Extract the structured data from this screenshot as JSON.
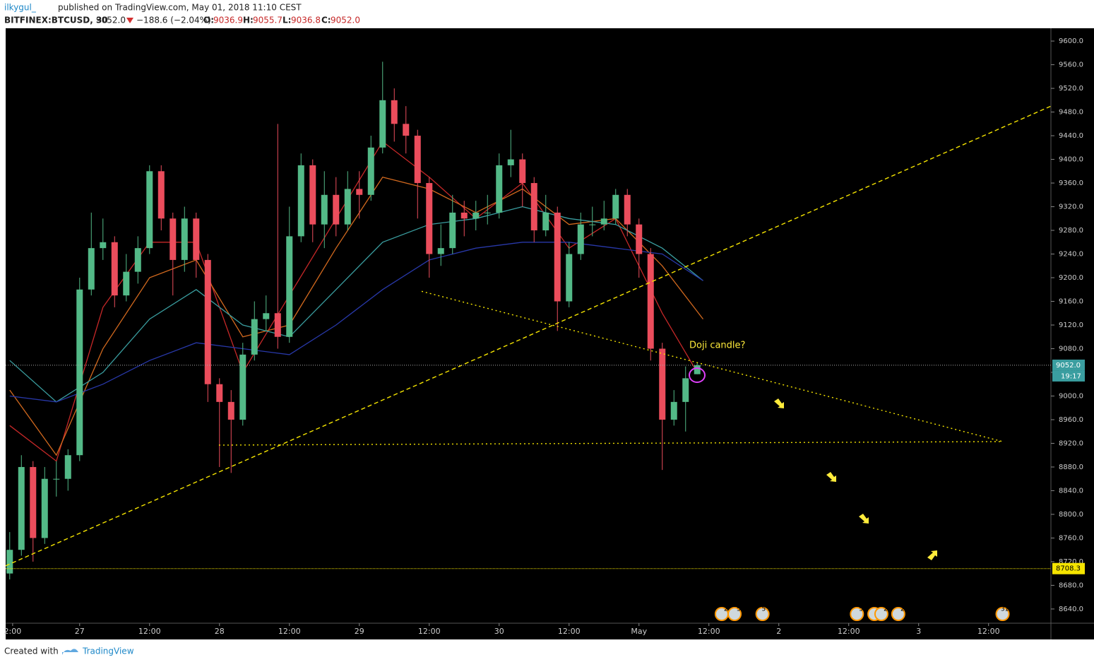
{
  "header": {
    "user": "ilkygul_",
    "published": "published on TradingView.com, May 01, 2018 11:10 CEST",
    "symbol": "BITFINEX:BTCUSD, 30",
    "last": "9052.0",
    "change": "−188.6 (−2.04%)",
    "o_label": "O:",
    "o": "9036.9",
    "h_label": "H:",
    "h": "9055.7",
    "l_label": "L:",
    "l": "9036.8",
    "c_label": "C:",
    "c": "9052.0"
  },
  "footer": {
    "created": "Created with",
    "brand": "TradingView"
  },
  "chart_data": {
    "type": "candlestick",
    "x": [
      -12,
      -10,
      -8,
      -6,
      -4,
      -2,
      0,
      2,
      4,
      6,
      8,
      10,
      12,
      14,
      16,
      18,
      20,
      22,
      24,
      26,
      28,
      30,
      32,
      34,
      36,
      38,
      40,
      42,
      44,
      46,
      48,
      50,
      52,
      54,
      56,
      58,
      60,
      62,
      64,
      66,
      68,
      70,
      72,
      74,
      76,
      78,
      80,
      82,
      84,
      86,
      88,
      90,
      92,
      94,
      96,
      98,
      100,
      102,
      104,
      106
    ],
    "open": [
      8700,
      8740,
      8880,
      8760,
      8860,
      8860,
      8900,
      9180,
      9250,
      9260,
      9170,
      9210,
      9250,
      9380,
      9300,
      9230,
      9300,
      9230,
      9020,
      8990,
      8960,
      9070,
      9130,
      9140,
      9100,
      9270,
      9390,
      9290,
      9340,
      9290,
      9350,
      9340,
      9420,
      9500,
      9460,
      9440,
      9360,
      9240,
      9250,
      9310,
      9300,
      9310,
      9310,
      9390,
      9400,
      9360,
      9280,
      9310,
      9160,
      9240,
      9290,
      9290,
      9300,
      9340,
      9290,
      9240,
      9080,
      8960,
      8990,
      9036.9
    ],
    "high": [
      8770,
      8900,
      8890,
      8880,
      8890,
      8910,
      9200,
      9310,
      9300,
      9270,
      9240,
      9270,
      9390,
      9390,
      9310,
      9320,
      9310,
      9240,
      9030,
      9010,
      9090,
      9160,
      9170,
      9460,
      9320,
      9410,
      9400,
      9380,
      9370,
      9380,
      9380,
      9440,
      9565,
      9520,
      9490,
      9450,
      9370,
      9290,
      9340,
      9330,
      9330,
      9340,
      9410,
      9450,
      9410,
      9370,
      9340,
      9320,
      9260,
      9310,
      9320,
      9330,
      9350,
      9350,
      9300,
      9250,
      9090,
      9010,
      9050,
      9055.7
    ],
    "low": [
      8690,
      8730,
      8720,
      8750,
      8830,
      8840,
      8890,
      9170,
      9230,
      9150,
      9160,
      9190,
      9240,
      9280,
      9170,
      9210,
      9200,
      8990,
      8880,
      8870,
      8950,
      9060,
      9110,
      9080,
      9090,
      9260,
      9260,
      9250,
      9270,
      9280,
      9300,
      9330,
      9410,
      9430,
      9410,
      9300,
      9200,
      9220,
      9240,
      9270,
      9280,
      9290,
      9300,
      9370,
      9320,
      9260,
      9270,
      9110,
      9150,
      9230,
      9270,
      9280,
      9290,
      9270,
      9200,
      9060,
      8875,
      8950,
      8940,
      9036.8
    ],
    "close": [
      8740,
      8880,
      8760,
      8860,
      8860,
      8900,
      9180,
      9250,
      9260,
      9170,
      9210,
      9250,
      9380,
      9300,
      9230,
      9300,
      9230,
      9020,
      8990,
      8960,
      9070,
      9130,
      9140,
      9100,
      9270,
      9390,
      9290,
      9340,
      9290,
      9350,
      9340,
      9420,
      9500,
      9460,
      9440,
      9360,
      9240,
      9250,
      9310,
      9300,
      9310,
      9310,
      9390,
      9400,
      9360,
      9280,
      9310,
      9160,
      9240,
      9290,
      9290,
      9300,
      9340,
      9290,
      9240,
      9080,
      8960,
      8990,
      9030,
      9052.0
    ],
    "up_color": "#53b987",
    "down_color": "#eb4d5c",
    "moving_averages": [
      {
        "color": "#c62828",
        "x": [
          -12,
          -4,
          4,
          12,
          20,
          28,
          36,
          44,
          52,
          60,
          68,
          76,
          84,
          92,
          100,
          106
        ],
        "values": [
          8950,
          8890,
          9150,
          9260,
          9260,
          9040,
          9170,
          9300,
          9430,
          9370,
          9300,
          9360,
          9250,
          9300,
          9140,
          9040
        ]
      },
      {
        "color": "#d2691e",
        "x": [
          -12,
          -4,
          4,
          12,
          20,
          28,
          36,
          44,
          52,
          60,
          68,
          76,
          84,
          92,
          100,
          107
        ],
        "values": [
          9010,
          8900,
          9080,
          9200,
          9230,
          9100,
          9120,
          9250,
          9370,
          9350,
          9310,
          9350,
          9290,
          9300,
          9220,
          9130
        ]
      },
      {
        "color": "#3a9ea0",
        "x": [
          -12,
          -4,
          4,
          12,
          20,
          28,
          36,
          44,
          52,
          60,
          68,
          76,
          84,
          92,
          100,
          107
        ],
        "values": [
          9060,
          8990,
          9040,
          9130,
          9180,
          9120,
          9100,
          9180,
          9260,
          9290,
          9300,
          9320,
          9300,
          9290,
          9250,
          9195
        ]
      },
      {
        "color": "#2838a8",
        "x": [
          -12,
          -4,
          4,
          12,
          20,
          28,
          36,
          44,
          52,
          60,
          68,
          76,
          84,
          92,
          100,
          107
        ],
        "values": [
          9000,
          8990,
          9020,
          9060,
          9090,
          9080,
          9070,
          9120,
          9180,
          9230,
          9250,
          9260,
          9260,
          9250,
          9240,
          9195
        ]
      }
    ],
    "trend_lines": [
      {
        "style": "dashed",
        "x": [
          -12.7,
          166.7
        ],
        "values": [
          8713,
          9490
        ]
      },
      {
        "style": "dotted",
        "x": [
          58.7,
          158.4
        ],
        "values": [
          9177,
          8923
        ]
      },
      {
        "style": "dotted",
        "x": [
          23.9,
          158.4
        ],
        "values": [
          8917,
          8923
        ]
      }
    ],
    "price_line": {
      "value": 9052.0,
      "label": "9052.0",
      "countdown": "19:17"
    },
    "level_line": {
      "value": 8708.3,
      "label": "8708.3"
    },
    "annotation": "Doji candle?",
    "events": [
      {
        "x": 110.2,
        "label": "2"
      },
      {
        "x": 112.4,
        "label": "5"
      },
      {
        "x": 117.2,
        "label": "5 5"
      },
      {
        "x": 133.4,
        "label": "5"
      },
      {
        "x": 136.4,
        "label": "2"
      },
      {
        "x": 137.6,
        "label": "2"
      },
      {
        "x": 140.5,
        "label": "2"
      },
      {
        "x": 158.4,
        "label": "312"
      }
    ],
    "xlim": [
      -12.7,
      166.7
    ],
    "xticks": [
      {
        "value": -11.5,
        "label": "2:00"
      },
      {
        "value": 0,
        "label": "27"
      },
      {
        "value": 12,
        "label": "12:00"
      },
      {
        "value": 24,
        "label": "28"
      },
      {
        "value": 36,
        "label": "12:00"
      },
      {
        "value": 48,
        "label": "29"
      },
      {
        "value": 60,
        "label": "12:00"
      },
      {
        "value": 72,
        "label": "30"
      },
      {
        "value": 84,
        "label": "12:00"
      },
      {
        "value": 96,
        "label": "May"
      },
      {
        "value": 108,
        "label": "12:00"
      },
      {
        "value": 120,
        "label": "2"
      },
      {
        "value": 132,
        "label": "12:00"
      },
      {
        "value": 144,
        "label": "3"
      },
      {
        "value": 156,
        "label": "12:00"
      }
    ],
    "ylim": [
      8616,
      9624
    ],
    "yticks": [
      {
        "value": 9600,
        "label": "9600.0"
      },
      {
        "value": 9560,
        "label": "9560.0"
      },
      {
        "value": 9520,
        "label": "9520.0"
      },
      {
        "value": 9480,
        "label": "9480.0"
      },
      {
        "value": 9440,
        "label": "9440.0"
      },
      {
        "value": 9400,
        "label": "9400.0"
      },
      {
        "value": 9360,
        "label": "9360.0"
      },
      {
        "value": 9320,
        "label": "9320.0"
      },
      {
        "value": 9280,
        "label": "9280.0"
      },
      {
        "value": 9240,
        "label": "9240.0"
      },
      {
        "value": 9200,
        "label": "9200.0"
      },
      {
        "value": 9160,
        "label": "9160.0"
      },
      {
        "value": 9120,
        "label": "9120.0"
      },
      {
        "value": 9080,
        "label": "9080.0"
      },
      {
        "value": 9040,
        "label": "9040.0"
      },
      {
        "value": 9000,
        "label": "9000.0"
      },
      {
        "value": 8960,
        "label": "8960.0"
      },
      {
        "value": 8920,
        "label": "8920.0"
      },
      {
        "value": 8880,
        "label": "8880.0"
      },
      {
        "value": 8840,
        "label": "8840.0"
      },
      {
        "value": 8800,
        "label": "8800.0"
      },
      {
        "value": 8760,
        "label": "8760.0"
      },
      {
        "value": 8720,
        "label": "8720.0"
      },
      {
        "value": 8680,
        "label": "8680.0"
      },
      {
        "value": 8640,
        "label": "8640.0"
      }
    ]
  }
}
